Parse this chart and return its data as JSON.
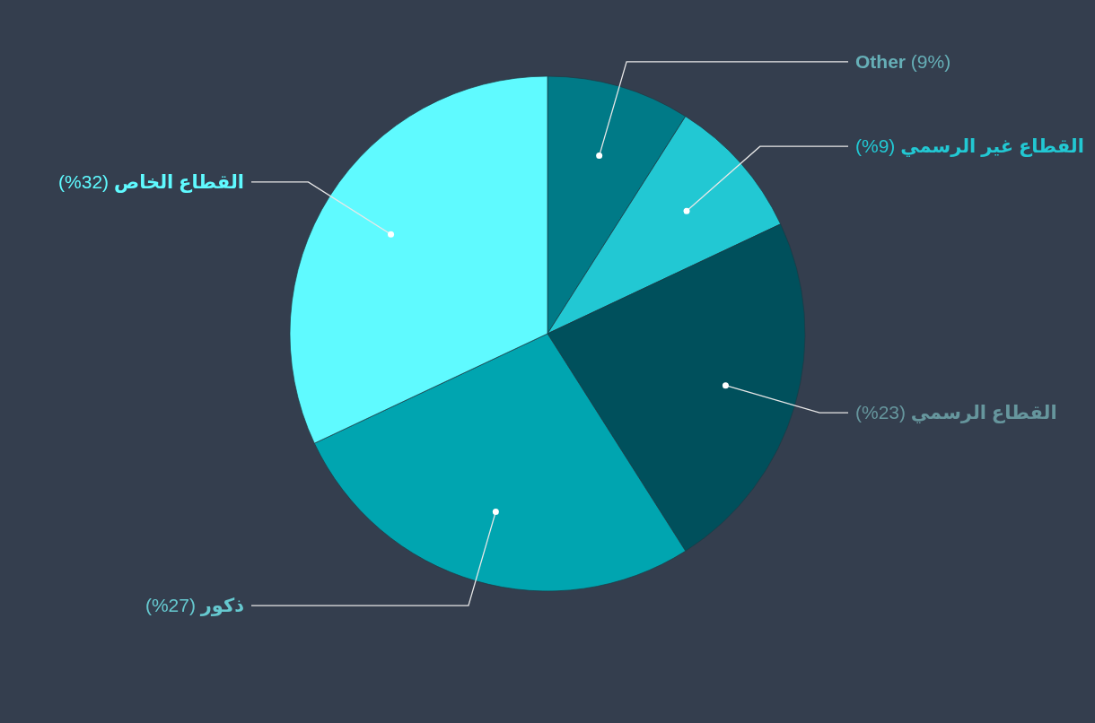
{
  "chart_data": {
    "type": "pie",
    "categories": [
      "Other",
      "القطاع غير الرسمي",
      "القطاع الرسمي",
      "ذكور",
      "القطاع الخاص"
    ],
    "values": [
      9,
      9,
      23,
      27,
      32
    ],
    "value_labels": [
      "(9%)",
      "(9%)",
      "(23%)",
      "(27%)",
      "(32%)"
    ],
    "colors": [
      "#007a87",
      "#22c8d3",
      "#00505c",
      "#00a5b0",
      "#5ffaff"
    ]
  }
}
